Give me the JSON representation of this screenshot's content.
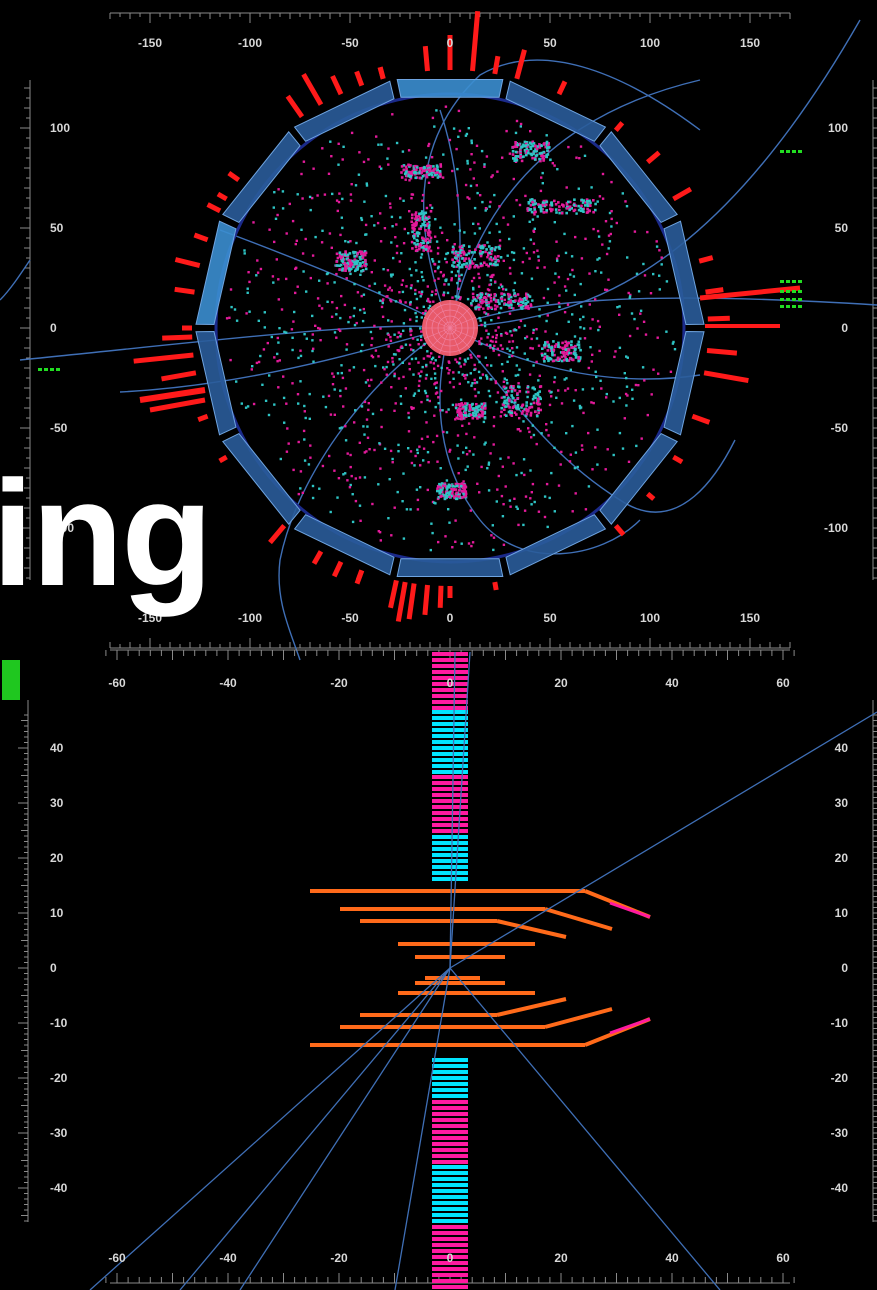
{
  "overlay_text": "ing",
  "colors": {
    "background": "#000000",
    "track": "#3f6fb6",
    "calorimeter_module": "#2a5c9a",
    "calorimeter_module_bright": "#3b8ed0",
    "energy_deposit": "#ff1a1a",
    "silicon_hit_magenta": "#e21a9a",
    "silicon_hit_cyan": "#2ec4c4",
    "strip_cyan": "#00e5ff",
    "strip_magenta": "#ff1aa0",
    "endcap_orange": "#ff6a1a",
    "muon_green": "#22dd22",
    "tick_text": "#d8d8d8"
  },
  "transverse_view": {
    "top_axis_labels": [
      "-150",
      "-100",
      "-50",
      "0",
      "50",
      "100",
      "150"
    ],
    "bottom_axis_labels": [
      "-150",
      "-100",
      "-50",
      "0",
      "50",
      "100",
      "150"
    ],
    "left_axis_labels": [
      "100",
      "50",
      "0",
      "-50",
      "-100"
    ],
    "right_axis_labels": [
      "100",
      "50",
      "0",
      "-50",
      "-100"
    ],
    "calorimeter_modules": 14
  },
  "longitudinal_view": {
    "top_axis_labels": [
      "-60",
      "-40",
      "-20",
      "0",
      "20",
      "40",
      "60"
    ],
    "bottom_axis_labels": [
      "-60",
      "-40",
      "-20",
      "0",
      "20",
      "40",
      "60"
    ],
    "left_axis_labels": [
      "40",
      "30",
      "20",
      "10",
      "0",
      "-10",
      "-20",
      "-30",
      "-40"
    ],
    "right_axis_labels": [
      "40",
      "30",
      "20",
      "10",
      "0",
      "-10",
      "-20",
      "-30",
      "-40"
    ]
  }
}
